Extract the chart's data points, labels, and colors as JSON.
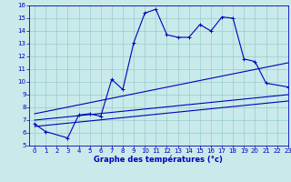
{
  "xlabel": "Graphe des températures (°c)",
  "bg_color": "#c8eaea",
  "line_color": "#0000bb",
  "grid_color": "#99cccc",
  "xlim": [
    -0.5,
    23
  ],
  "ylim": [
    5,
    16
  ],
  "xticks": [
    0,
    1,
    2,
    3,
    4,
    5,
    6,
    7,
    8,
    9,
    10,
    11,
    12,
    13,
    14,
    15,
    16,
    17,
    18,
    19,
    20,
    21,
    22,
    23
  ],
  "yticks": [
    5,
    6,
    7,
    8,
    9,
    10,
    11,
    12,
    13,
    14,
    15,
    16
  ],
  "curve1_x": [
    0,
    1,
    3,
    4,
    5,
    6,
    7,
    8,
    9,
    10,
    11,
    12,
    13,
    14,
    15,
    16,
    17,
    18,
    19,
    20,
    21,
    23
  ],
  "curve1_y": [
    6.7,
    6.1,
    5.6,
    7.4,
    7.5,
    7.3,
    10.2,
    9.4,
    13.1,
    15.4,
    15.7,
    13.7,
    13.5,
    13.5,
    14.5,
    14.0,
    15.1,
    15.0,
    11.8,
    11.6,
    9.9,
    9.6
  ],
  "line1_x": [
    0,
    23
  ],
  "line1_y": [
    6.5,
    8.5
  ],
  "line2_x": [
    0,
    23
  ],
  "line2_y": [
    7.0,
    9.0
  ],
  "line3_x": [
    0,
    23
  ],
  "line3_y": [
    7.5,
    11.5
  ]
}
